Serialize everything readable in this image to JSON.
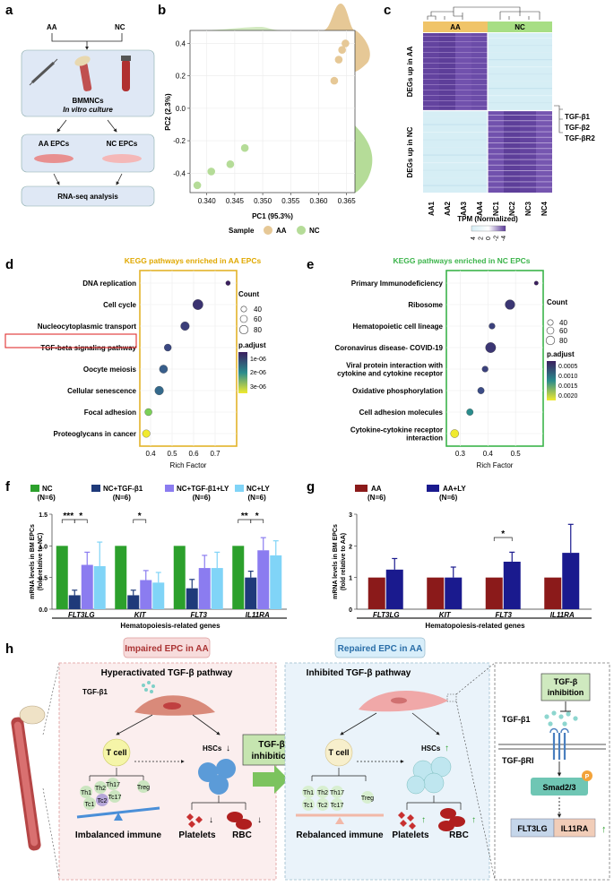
{
  "panels": {
    "a": "a",
    "b": "b",
    "c": "c",
    "d": "d",
    "e": "e",
    "f": "f",
    "g": "g",
    "h": "h"
  },
  "panel_a": {
    "aa": "AA",
    "nc": "NC",
    "bmmncs": "BMMNCs",
    "culture": "In vitro culture",
    "aa_epcs": "AA EPCs",
    "nc_epcs": "NC EPCs",
    "rnaseq": "RNA-seq analysis"
  },
  "panel_b": {
    "xlabel": "PC1 (95.3%)",
    "ylabel": "PC2 (2.3%)",
    "legend_title": "Sample",
    "legend_aa": "AA",
    "legend_nc": "NC",
    "colors": {
      "AA": "#e6c896",
      "NC": "#b5dc98"
    }
  },
  "panel_c": {
    "group_aa": "AA",
    "group_nc": "NC",
    "row_label_top": "DEGs up in AA",
    "row_label_bottom": "DEGs up in NC",
    "genes": [
      "TGF-β1",
      "TGF-β2",
      "TGF-βR2"
    ],
    "columns": [
      "AA1",
      "AA2",
      "AA3",
      "AA4",
      "NC1",
      "NC2",
      "NC3",
      "NC4"
    ],
    "scale_title": "TPM (Normalized)",
    "scale_ticks": [
      "4",
      "2",
      "0",
      "-2",
      "-4"
    ]
  },
  "panel_d": {
    "title": "KEGG pathways enriched in AA EPCs",
    "xlabel": "Rich Factor",
    "count_title": "Count",
    "count_values": [
      "40",
      "60",
      "80"
    ],
    "padj_title": "p.adjust",
    "padj_ticks": [
      "1e-06",
      "2e-06",
      "3e-06"
    ]
  },
  "panel_e": {
    "title": "KEGG pathways enriched in NC EPCs",
    "xlabel": "Rich Factor",
    "count_title": "Count",
    "count_values": [
      "40",
      "60",
      "80"
    ],
    "padj_title": "p.adjust",
    "padj_ticks": [
      "0.0005",
      "0.0010",
      "0.0015",
      "0.0020"
    ]
  },
  "panel_f": {
    "legend": [
      {
        "label": "NC",
        "n": "(N=6)",
        "color": "#2ca02c"
      },
      {
        "label": "NC+TGF-β1",
        "n": "(N=6)",
        "color": "#1f3a7a"
      },
      {
        "label": "NC+TGF-β1+LY",
        "n": "(N=6)",
        "color": "#8b7cf0"
      },
      {
        "label": "NC+LY",
        "n": "(N=6)",
        "color": "#80d4f7"
      }
    ],
    "ylabel_1": "mRNA levels in BM EPCs",
    "ylabel_2": "(fold relative to NC)",
    "xtitle": "Hematopoiesis-related genes"
  },
  "panel_g": {
    "legend": [
      {
        "label": "AA",
        "n": "(N=6)",
        "color": "#8b1a1a"
      },
      {
        "label": "AA+LY",
        "n": "(N=6)",
        "color": "#1a1a8e"
      }
    ],
    "ylabel_1": "mRNA levels in BM EPCs",
    "ylabel_2": "(fold relative to AA)",
    "xtitle": "Hematopoiesis-related genes"
  },
  "panel_h": {
    "left_title": "Impaired EPC in AA",
    "left_subtitle": "Hyperactivated TGF-β pathway",
    "tgfb1": "TGF-β1",
    "tcell": "T cell",
    "hscs": "HSCs",
    "th1": "Th1",
    "th2": "Th2",
    "th17": "Th17",
    "treg": "Treg",
    "tc1": "Tc1",
    "tc2": "Tc2",
    "tc17": "Tc17",
    "imbalanced": "Imbalanced immune",
    "platelets": "Platelets",
    "rbc": "RBC",
    "inhibit_1": "TGF-β",
    "inhibit_2": "inhibition",
    "mid_title": "Repaired EPC in AA",
    "mid_subtitle": "Inhibited TGF-β pathway",
    "rebalanced": "Rebalanced immune",
    "right_inhibit_1": "TGF-β",
    "right_inhibit_2": "inhibition",
    "right_tgfb1": "TGF-β1",
    "receptor": "TGF-βRI",
    "smad": "Smad2/3",
    "p": "P",
    "flt3lg": "FLT3LG",
    "il11ra": "IL11RA"
  },
  "chart_data": [
    {
      "type": "scatter",
      "title": "",
      "xlabel": "PC1 (95.3%)",
      "ylabel": "PC2 (2.3%)",
      "xlim": [
        0.337,
        0.3665
      ],
      "ylim": [
        -0.52,
        0.48
      ],
      "x_ticks": [
        "0.340",
        "0.345",
        "0.350",
        "0.355",
        "0.360",
        "0.365"
      ],
      "y_ticks": [
        "0.4",
        "0.2",
        "0.0",
        "-0.2",
        "-0.4"
      ],
      "series": [
        {
          "name": "AA",
          "points": [
            [
              0.3648,
              0.4
            ],
            [
              0.3642,
              0.36
            ],
            [
              0.3636,
              0.3
            ],
            [
              0.3628,
              0.17
            ]
          ]
        },
        {
          "name": "NC",
          "points": [
            [
              0.3383,
              -0.475
            ],
            [
              0.3408,
              -0.39
            ],
            [
              0.3442,
              -0.345
            ],
            [
              0.3468,
              -0.245
            ]
          ]
        }
      ]
    },
    {
      "type": "scatter",
      "title": "KEGG pathways enriched in AA EPCs",
      "xlabel": "Rich Factor",
      "xlim": [
        0.35,
        0.8
      ],
      "x_ticks": [
        "0.4",
        "0.5",
        "0.6",
        "0.7"
      ],
      "categories": [
        "DNA replication",
        "Cell cycle",
        "Nucleocytoplasmic transport",
        "TGF-beta signaling pathway",
        "Oocyte meiosis",
        "Cellular senescence",
        "Focal adhesion",
        "Proteoglycans in cancer"
      ],
      "x": [
        0.76,
        0.62,
        0.56,
        0.48,
        0.46,
        0.44,
        0.39,
        0.38
      ],
      "count": [
        30,
        85,
        70,
        55,
        65,
        70,
        55,
        60
      ],
      "p_adjust": [
        1e-06,
        1.2e-06,
        1.3e-06,
        1.4e-06,
        1.6e-06,
        1.7e-06,
        2.6e-06,
        3e-06
      ],
      "highlight": "TGF-beta signaling pathway"
    },
    {
      "type": "scatter",
      "title": "KEGG pathways enriched in NC EPCs",
      "xlabel": "Rich Factor",
      "xlim": [
        0.25,
        0.6
      ],
      "x_ticks": [
        "0.3",
        "0.4",
        "0.5"
      ],
      "categories": [
        "Primary Immunodeficiency",
        "Ribosome",
        "Hematopoietic cell lineage",
        "Coronavirus disease- COVID-19",
        "Viral protein interaction with cytokine and cytokine receptor",
        "Oxidative phosphorylation",
        "Cell adhesion molecules",
        "Cytokine-cytokine receptor interaction"
      ],
      "x": [
        0.575,
        0.48,
        0.415,
        0.41,
        0.39,
        0.375,
        0.335,
        0.28
      ],
      "count": [
        25,
        80,
        45,
        85,
        45,
        50,
        50,
        65
      ],
      "p_adjust": [
        0.0003,
        0.0005,
        0.0006,
        0.0005,
        0.0006,
        0.0007,
        0.0012,
        0.0021
      ]
    },
    {
      "type": "bar",
      "xtitle": "Hematopoiesis-related genes",
      "ylabel": "mRNA levels in BM EPCs (fold relative to NC)",
      "ylim": [
        0,
        1.5
      ],
      "y_ticks": [
        "0.0",
        "0.5",
        "1.0",
        "1.5"
      ],
      "categories": [
        "FLT3LG",
        "KIT",
        "FLT3",
        "IL11RA"
      ],
      "series": [
        {
          "name": "NC",
          "values": [
            1.0,
            1.0,
            1.0,
            1.0
          ],
          "errors": [
            0,
            0,
            0,
            0
          ]
        },
        {
          "name": "NC+TGF-β1",
          "values": [
            0.22,
            0.22,
            0.33,
            0.5
          ],
          "errors": [
            0.08,
            0.08,
            0.14,
            0.1
          ]
        },
        {
          "name": "NC+TGF-β1+LY",
          "values": [
            0.7,
            0.46,
            0.65,
            0.93
          ],
          "errors": [
            0.2,
            0.15,
            0.2,
            0.2
          ]
        },
        {
          "name": "NC+LY",
          "values": [
            0.68,
            0.42,
            0.65,
            0.85
          ],
          "errors": [
            0.38,
            0.16,
            0.25,
            0.23
          ]
        }
      ],
      "significance": [
        {
          "gene": "FLT3LG",
          "from": "NC",
          "to": "NC+TGF-β1",
          "label": "***"
        },
        {
          "gene": "FLT3LG",
          "from": "NC+TGF-β1",
          "to": "NC+TGF-β1+LY",
          "label": "*"
        },
        {
          "gene": "KIT",
          "from": "NC+TGF-β1",
          "to": "NC+TGF-β1+LY",
          "label": "*"
        },
        {
          "gene": "IL11RA",
          "from": "NC",
          "to": "NC+TGF-β1",
          "label": "**"
        },
        {
          "gene": "IL11RA",
          "from": "NC+TGF-β1",
          "to": "NC+TGF-β1+LY",
          "label": "*"
        }
      ]
    },
    {
      "type": "bar",
      "xtitle": "Hematopoiesis-related genes",
      "ylabel": "mRNA levels in BM EPCs (fold relative to AA)",
      "ylim": [
        0,
        3
      ],
      "y_ticks": [
        "0",
        "1",
        "2",
        "3"
      ],
      "categories": [
        "FLT3LG",
        "KIT",
        "FLT3",
        "IL11RA"
      ],
      "series": [
        {
          "name": "AA",
          "values": [
            1.0,
            1.0,
            1.0,
            1.0
          ],
          "errors": [
            0,
            0,
            0,
            0
          ]
        },
        {
          "name": "AA+LY",
          "values": [
            1.25,
            1.0,
            1.5,
            1.78
          ],
          "errors": [
            0.35,
            0.33,
            0.3,
            0.9
          ]
        }
      ],
      "significance": [
        {
          "gene": "FLT3",
          "from": "AA",
          "to": "AA+LY",
          "label": "*"
        }
      ]
    }
  ]
}
